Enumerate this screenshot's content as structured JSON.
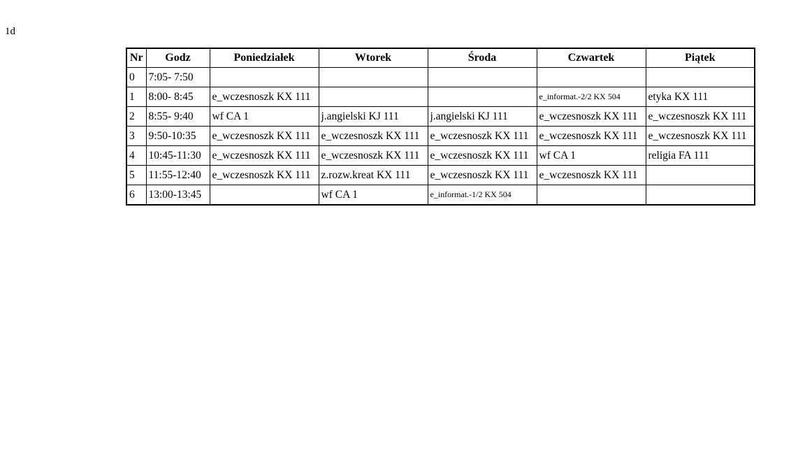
{
  "page": {
    "class_label": "1d"
  },
  "table": {
    "headers": [
      "Nr",
      "Godz",
      "Poniedziałek",
      "Wtorek",
      "Środa",
      "Czwartek",
      "Piątek"
    ],
    "rows": [
      {
        "nr": "0",
        "time": "7:05- 7:50",
        "lessons": [
          null,
          null,
          null,
          null,
          null
        ]
      },
      {
        "nr": "1",
        "time": "8:00- 8:45",
        "lessons": [
          {
            "text": "e_wczesnoszk KX 111"
          },
          null,
          null,
          {
            "text": "e_informat.-2/2 KX 504",
            "small": true
          },
          {
            "text": "etyka KX 111"
          }
        ]
      },
      {
        "nr": "2",
        "time": "8:55- 9:40",
        "lessons": [
          {
            "text": "wf CA 1"
          },
          {
            "text": "j.angielski KJ 111"
          },
          {
            "text": "j.angielski KJ 111"
          },
          {
            "text": "e_wczesnoszk KX 111"
          },
          {
            "text": "e_wczesnoszk KX 111"
          }
        ]
      },
      {
        "nr": "3",
        "time": "9:50-10:35",
        "lessons": [
          {
            "text": "e_wczesnoszk KX 111"
          },
          {
            "text": "e_wczesnoszk KX 111"
          },
          {
            "text": "e_wczesnoszk KX 111"
          },
          {
            "text": "e_wczesnoszk KX 111"
          },
          {
            "text": "e_wczesnoszk KX 111"
          }
        ]
      },
      {
        "nr": "4",
        "time": "10:45-11:30",
        "lessons": [
          {
            "text": "e_wczesnoszk KX 111"
          },
          {
            "text": "e_wczesnoszk KX 111"
          },
          {
            "text": "e_wczesnoszk KX 111"
          },
          {
            "text": "wf CA 1"
          },
          {
            "text": "religia FA 111"
          }
        ]
      },
      {
        "nr": "5",
        "time": "11:55-12:40",
        "lessons": [
          {
            "text": "e_wczesnoszk KX 111"
          },
          {
            "text": "z.rozw.kreat KX 111"
          },
          {
            "text": "e_wczesnoszk KX 111"
          },
          {
            "text": "e_wczesnoszk KX 111"
          },
          null
        ]
      },
      {
        "nr": "6",
        "time": "13:00-13:45",
        "lessons": [
          null,
          {
            "text": "wf CA 1"
          },
          {
            "text": "e_informat.-1/2 KX 504",
            "small": true
          },
          null,
          null
        ]
      }
    ]
  }
}
